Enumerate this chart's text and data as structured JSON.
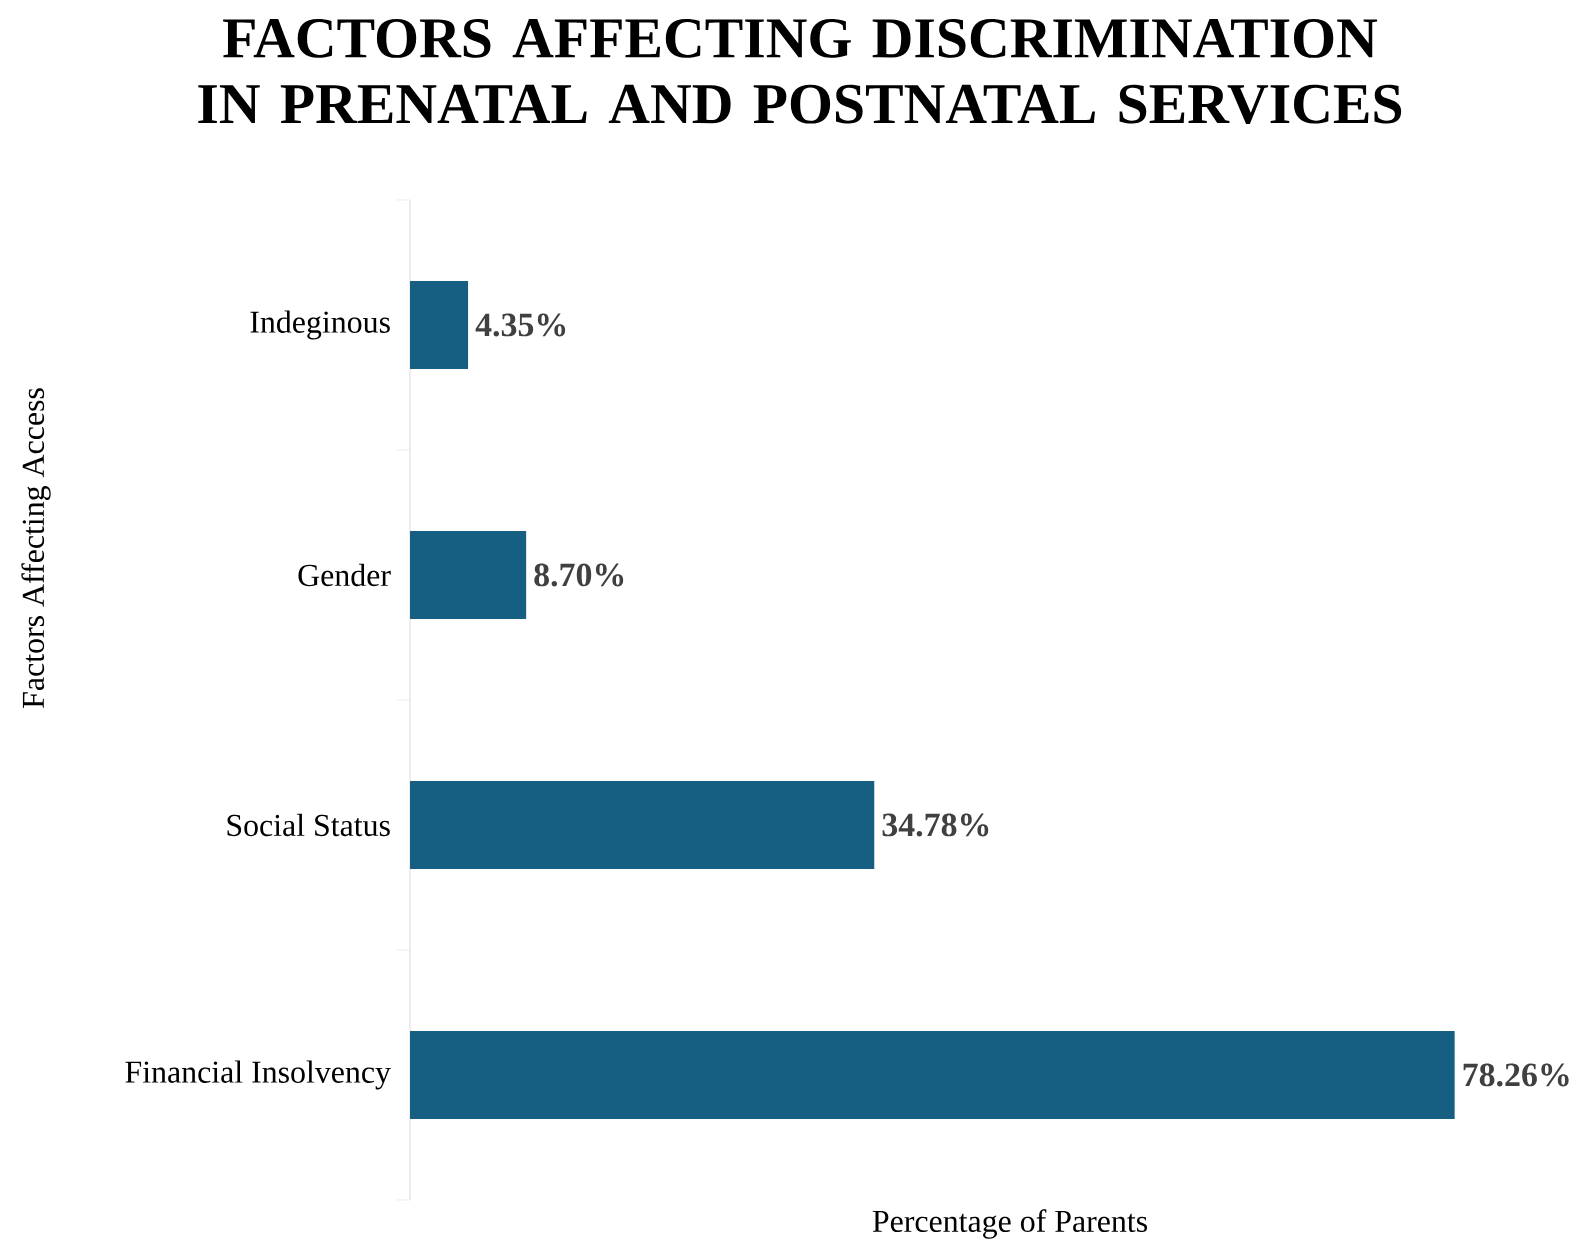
{
  "chart_data": {
    "type": "bar",
    "orientation": "horizontal",
    "title": "FACTORS AFFECTING DISCRIMINATION IN PRENATAL  AND  POSTNATAL SERVICES",
    "xlabel": "Percentage of Parents",
    "ylabel": "Factors Affecting Access",
    "categories": [
      "Indeginous",
      "Gender",
      "Social Status",
      "Financial Insolvency"
    ],
    "values": [
      4.35,
      8.7,
      34.78,
      78.26
    ],
    "value_labels": [
      "4.35%",
      "8.70%",
      "34.78%",
      "78.26%"
    ],
    "color": "#175f82",
    "grid": false,
    "legend": false
  }
}
